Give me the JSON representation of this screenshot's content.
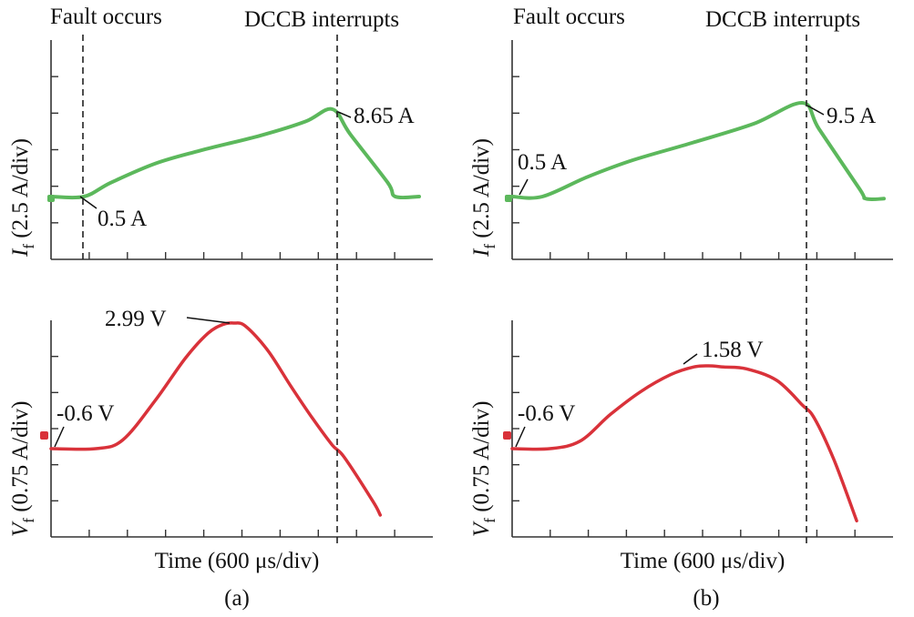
{
  "colors": {
    "current": "#5cb85c",
    "voltage": "#d9323a"
  },
  "panels": [
    {
      "id": "a",
      "caption": "(a)",
      "fault_label": "Fault occurs",
      "interrupt_label": "DCCB interrupts",
      "time_label": "Time (600 μs/div)",
      "current_axis": {
        "symbol": "I",
        "sub": "f",
        "unit": " (2.5 A/div)"
      },
      "voltage_axis": {
        "symbol": "V",
        "sub": "f",
        "unit": " (0.75 A/div)"
      },
      "current_annotations": {
        "start": "0.5 A",
        "peak": "8.65 A"
      },
      "voltage_annotations": {
        "start": "-0.6 V",
        "peak": "2.99 V"
      }
    },
    {
      "id": "b",
      "caption": "(b)",
      "fault_label": "Fault occurs",
      "interrupt_label": "DCCB interrupts",
      "time_label": "Time (600 μs/div)",
      "current_axis": {
        "symbol": "I",
        "sub": "f",
        "unit": " (2.5 A/div)"
      },
      "voltage_axis": {
        "symbol": "V",
        "sub": "f",
        "unit": " (0.75 A/div)"
      },
      "current_annotations": {
        "start": "0.5 A",
        "peak": "9.5 A"
      },
      "voltage_annotations": {
        "start": "-0.6 V",
        "peak": "1.58 V"
      }
    }
  ],
  "chart_data": [
    {
      "panel": "a",
      "type": "line",
      "x_unit": "μs",
      "fault_time_us": 220,
      "interrupt_time_us": 1880,
      "series": [
        {
          "name": "If",
          "unit": "A",
          "points": [
            [
              0,
              0.5
            ],
            [
              220,
              0.5
            ],
            [
              400,
              1.8
            ],
            [
              700,
              3.6
            ],
            [
              1000,
              4.8
            ],
            [
              1400,
              6.2
            ],
            [
              1700,
              7.5
            ],
            [
              1880,
              8.65
            ],
            [
              2000,
              6.3
            ],
            [
              2250,
              1.8
            ],
            [
              2300,
              0.5
            ],
            [
              2460,
              0.5
            ]
          ]
        },
        {
          "name": "Vf",
          "unit": "V",
          "points": [
            [
              0,
              -0.6
            ],
            [
              300,
              -0.6
            ],
            [
              480,
              -0.35
            ],
            [
              700,
              0.8
            ],
            [
              900,
              2.0
            ],
            [
              1050,
              2.7
            ],
            [
              1150,
              2.95
            ],
            [
              1220,
              2.99
            ],
            [
              1300,
              2.9
            ],
            [
              1450,
              2.2
            ],
            [
              1600,
              1.2
            ],
            [
              1750,
              0.25
            ],
            [
              1880,
              -0.5
            ],
            [
              1960,
              -0.85
            ],
            [
              2150,
              -2.1
            ],
            [
              2200,
              -2.5
            ]
          ]
        }
      ]
    },
    {
      "panel": "b",
      "type": "line",
      "x_unit": "μs",
      "fault_time_us": 200,
      "interrupt_time_us": 1920,
      "series": [
        {
          "name": "If",
          "unit": "A",
          "points": [
            [
              0,
              0.5
            ],
            [
              200,
              0.5
            ],
            [
              500,
              2.4
            ],
            [
              800,
              4.0
            ],
            [
              1200,
              5.7
            ],
            [
              1600,
              7.5
            ],
            [
              1920,
              9.5
            ],
            [
              2030,
              7.0
            ],
            [
              2300,
              1.2
            ],
            [
              2340,
              0.3
            ],
            [
              2460,
              0.3
            ]
          ]
        },
        {
          "name": "Vf",
          "unit": "V",
          "points": [
            [
              0,
              -0.6
            ],
            [
              250,
              -0.6
            ],
            [
              450,
              -0.4
            ],
            [
              650,
              0.3
            ],
            [
              850,
              0.9
            ],
            [
              1050,
              1.35
            ],
            [
              1200,
              1.55
            ],
            [
              1300,
              1.58
            ],
            [
              1400,
              1.55
            ],
            [
              1550,
              1.5
            ],
            [
              1750,
              1.2
            ],
            [
              1920,
              0.55
            ],
            [
              2000,
              0.2
            ],
            [
              2130,
              -0.9
            ],
            [
              2280,
              -2.5
            ]
          ]
        }
      ]
    }
  ]
}
